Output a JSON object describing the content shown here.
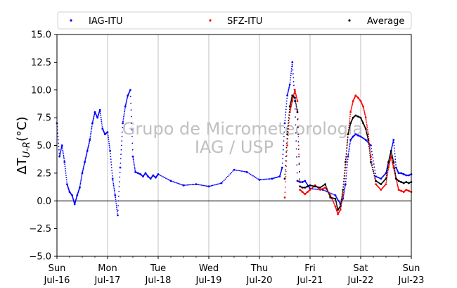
{
  "chart_data": {
    "type": "scatter",
    "ylabel": "ΔT_{U-R}(°C)",
    "ylim": [
      -5.0,
      15.0
    ],
    "yticks": [
      "−5.0",
      "−2.5",
      "0.0",
      "2.5",
      "5.0",
      "7.5",
      "10.0",
      "12.5",
      "15.0"
    ],
    "ytick_values": [
      -5.0,
      -2.5,
      0.0,
      2.5,
      5.0,
      7.5,
      10.0,
      12.5,
      15.0
    ],
    "xlim": [
      0,
      7
    ],
    "xticks": [
      {
        "day": "Sun",
        "date": "Jul-16",
        "x": 0
      },
      {
        "day": "Mon",
        "date": "Jul-17",
        "x": 1
      },
      {
        "day": "Tue",
        "date": "Jul-18",
        "x": 2
      },
      {
        "day": "Wed",
        "date": "Jul-19",
        "x": 3
      },
      {
        "day": "Thu",
        "date": "Jul-20",
        "x": 4
      },
      {
        "day": "Fri",
        "date": "Jul-21",
        "x": 5
      },
      {
        "day": "Sat",
        "date": "Jul-22",
        "x": 6
      },
      {
        "day": "Sun",
        "date": "Jul-23",
        "x": 7
      }
    ],
    "grid": "vertical",
    "zero_line": 0,
    "legend_position": "top",
    "watermark": [
      "Grupo de Micrometeorologia",
      "IAG / USP"
    ],
    "series": [
      {
        "name": "IAG-ITU",
        "color": "#0000ff",
        "x": [
          0.0,
          0.05,
          0.1,
          0.15,
          0.2,
          0.25,
          0.3,
          0.35,
          0.4,
          0.45,
          0.5,
          0.55,
          0.6,
          0.65,
          0.7,
          0.75,
          0.8,
          0.85,
          0.9,
          0.95,
          1.0,
          1.05,
          1.1,
          1.15,
          1.2,
          1.25,
          1.3,
          1.35,
          1.4,
          1.45,
          1.5,
          1.55,
          1.6,
          1.65,
          1.7,
          1.75,
          1.8,
          1.85,
          1.9,
          1.95,
          2.0,
          2.25,
          2.5,
          2.75,
          3.0,
          3.25,
          3.5,
          3.75,
          4.0,
          4.25,
          4.4,
          4.45,
          4.5,
          4.55,
          4.6,
          4.65,
          4.7,
          4.75,
          4.8,
          4.85,
          4.9,
          5.0,
          5.25,
          5.5,
          5.6,
          5.65,
          5.7,
          5.75,
          5.8,
          5.85,
          5.9,
          5.95,
          6.0,
          6.1,
          6.2,
          6.3,
          6.4,
          6.5,
          6.55,
          6.6,
          6.65,
          6.7,
          6.75,
          6.8,
          6.85,
          6.9,
          6.95,
          7.0
        ],
        "y": [
          7.0,
          4.0,
          5.0,
          3.5,
          1.5,
          0.8,
          0.5,
          -0.3,
          0.5,
          1.2,
          2.5,
          3.5,
          4.5,
          5.5,
          7.0,
          8.0,
          7.5,
          8.2,
          6.5,
          6.0,
          6.2,
          4.5,
          2.0,
          0.5,
          -1.3,
          3.0,
          7.0,
          8.5,
          9.5,
          10.0,
          4.0,
          2.6,
          2.5,
          2.4,
          2.2,
          2.5,
          2.2,
          2.0,
          2.3,
          2.1,
          2.4,
          1.8,
          1.4,
          1.5,
          1.3,
          1.6,
          2.8,
          2.6,
          1.9,
          2.0,
          2.2,
          3.0,
          7.0,
          9.5,
          10.5,
          12.5,
          9.0,
          1.8,
          1.7,
          1.7,
          1.8,
          1.1,
          1.0,
          0.5,
          -0.3,
          0.2,
          1.5,
          4.0,
          5.5,
          5.8,
          6.0,
          5.9,
          5.8,
          5.5,
          5.0,
          2.2,
          2.0,
          2.5,
          3.5,
          4.5,
          5.5,
          3.0,
          2.5,
          2.5,
          2.4,
          2.3,
          2.3,
          2.4
        ]
      },
      {
        "name": "SFZ-ITU",
        "color": "#ff0000",
        "x": [
          4.5,
          4.55,
          4.6,
          4.65,
          4.7,
          4.75,
          4.8,
          4.85,
          4.9,
          4.95,
          5.0,
          5.1,
          5.2,
          5.3,
          5.4,
          5.5,
          5.55,
          5.6,
          5.65,
          5.7,
          5.75,
          5.8,
          5.85,
          5.9,
          5.95,
          6.0,
          6.05,
          6.1,
          6.15,
          6.2,
          6.3,
          6.4,
          6.5,
          6.55,
          6.6,
          6.65,
          6.7,
          6.75,
          6.8,
          6.85,
          6.9,
          6.95,
          7.0
        ],
        "y": [
          0.3,
          5.0,
          8.0,
          9.0,
          10.0,
          9.0,
          1.0,
          0.8,
          0.6,
          0.8,
          1.0,
          1.4,
          1.0,
          1.2,
          0.5,
          -0.5,
          -1.2,
          -0.8,
          0.5,
          3.0,
          6.0,
          8.0,
          9.0,
          9.5,
          9.3,
          9.0,
          8.5,
          7.5,
          6.0,
          4.0,
          1.5,
          1.0,
          1.5,
          3.0,
          4.0,
          3.0,
          2.0,
          1.0,
          0.9,
          0.8,
          1.0,
          0.9,
          0.8
        ]
      },
      {
        "name": "Average",
        "color": "#000000",
        "x": [
          4.5,
          4.55,
          4.6,
          4.65,
          4.7,
          4.75,
          4.8,
          4.85,
          4.9,
          4.95,
          5.0,
          5.1,
          5.2,
          5.3,
          5.4,
          5.5,
          5.55,
          5.6,
          5.65,
          5.7,
          5.75,
          5.8,
          5.85,
          5.9,
          5.95,
          6.0,
          6.05,
          6.1,
          6.15,
          6.2,
          6.3,
          6.4,
          6.5,
          6.55,
          6.6,
          6.65,
          6.7,
          6.75,
          6.8,
          6.85,
          6.9,
          6.95,
          7.0
        ],
        "y": [
          2.0,
          6.0,
          8.5,
          9.5,
          9.3,
          8.0,
          1.3,
          1.2,
          1.2,
          1.3,
          1.4,
          1.3,
          1.2,
          1.5,
          0.3,
          0.2,
          -0.8,
          -0.5,
          1.0,
          3.5,
          6.0,
          7.0,
          7.5,
          7.7,
          7.6,
          7.5,
          7.0,
          6.5,
          5.5,
          3.5,
          1.8,
          1.5,
          2.0,
          3.5,
          4.5,
          3.5,
          2.0,
          1.8,
          1.7,
          1.6,
          1.7,
          1.6,
          1.7
        ]
      }
    ]
  }
}
